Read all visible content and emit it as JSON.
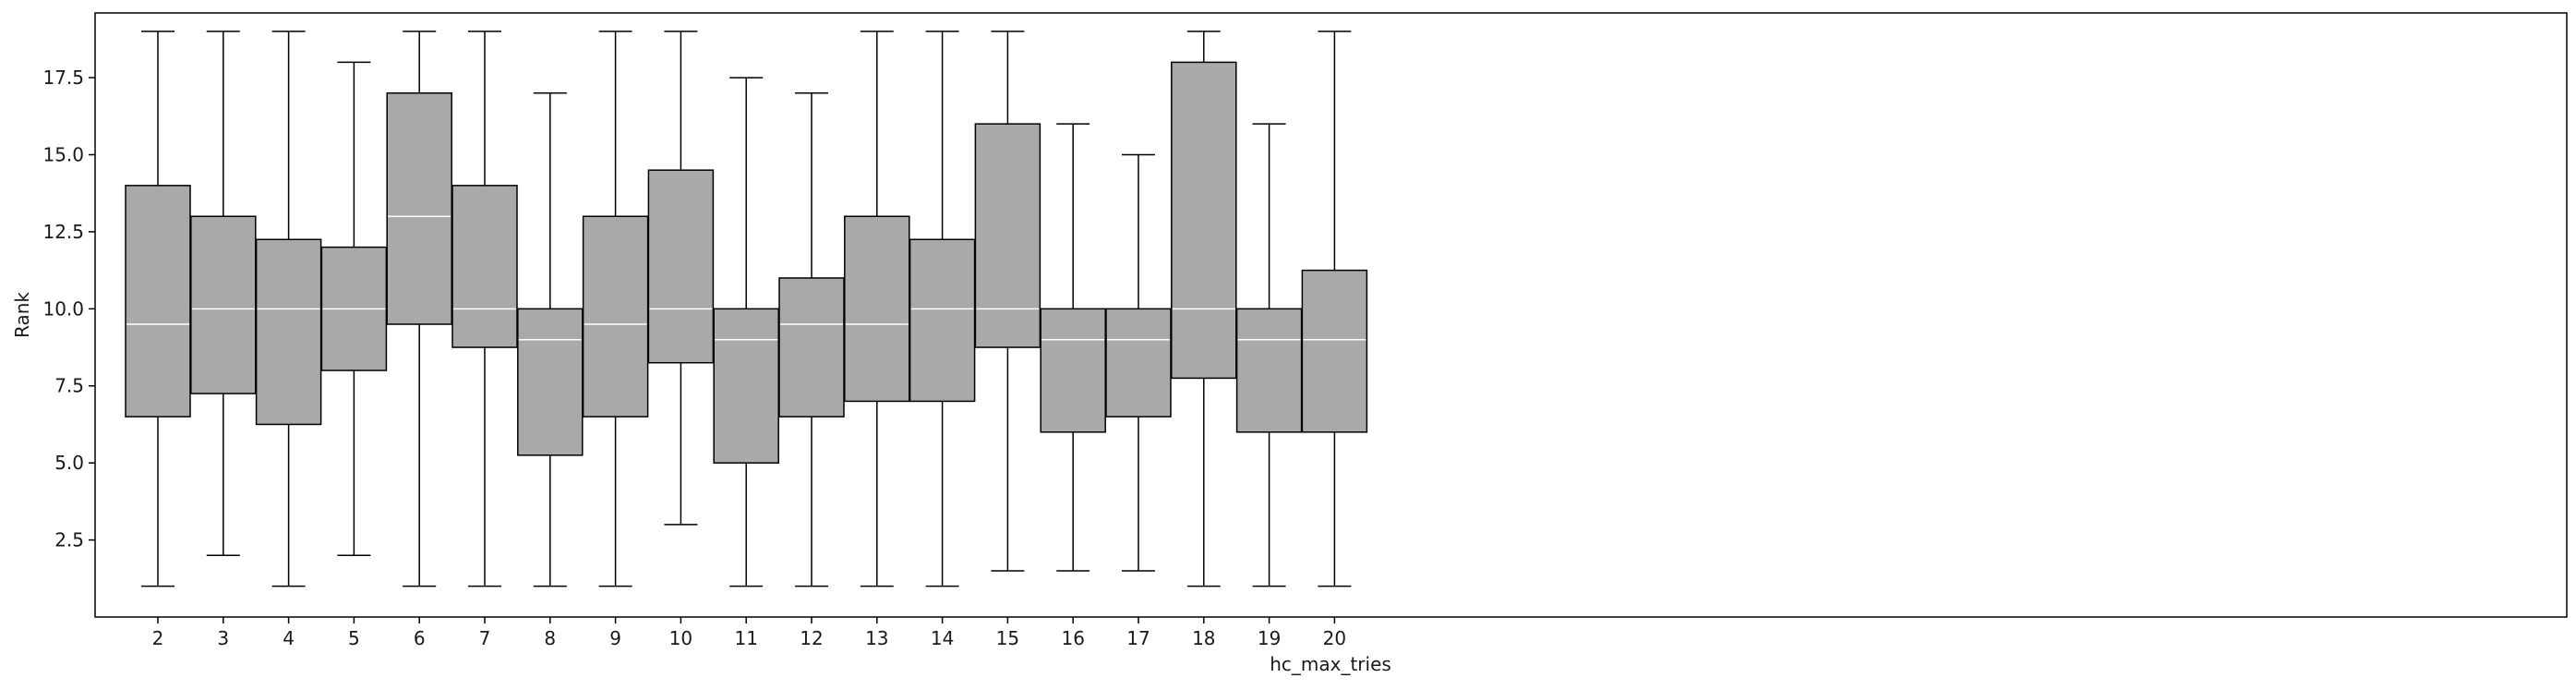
{
  "chart_data": {
    "type": "box",
    "xlabel": "hc_max_tries",
    "ylabel": "Rank",
    "ylim": [
      0,
      19.6
    ],
    "yticks": [
      2.5,
      5.0,
      7.5,
      10.0,
      12.5,
      15.0,
      17.5
    ],
    "ytick_labels": [
      "2.5",
      "5.0",
      "7.5",
      "10.0",
      "12.5",
      "15.0",
      "17.5"
    ],
    "categories": [
      "2",
      "3",
      "4",
      "5",
      "6",
      "7",
      "8",
      "9",
      "10",
      "11",
      "12",
      "13",
      "14",
      "15",
      "16",
      "17",
      "18",
      "19",
      "20"
    ],
    "boxes": [
      {
        "whislo": 1.0,
        "q1": 6.5,
        "med": 9.5,
        "q3": 14.0,
        "whishi": 19.0
      },
      {
        "whislo": 2.0,
        "q1": 7.25,
        "med": 10.0,
        "q3": 13.0,
        "whishi": 19.0
      },
      {
        "whislo": 1.0,
        "q1": 6.25,
        "med": 10.0,
        "q3": 12.25,
        "whishi": 19.0
      },
      {
        "whislo": 2.0,
        "q1": 8.0,
        "med": 10.0,
        "q3": 12.0,
        "whishi": 18.0
      },
      {
        "whislo": 1.0,
        "q1": 9.5,
        "med": 13.0,
        "q3": 17.0,
        "whishi": 19.0
      },
      {
        "whislo": 1.0,
        "q1": 8.75,
        "med": 10.0,
        "q3": 14.0,
        "whishi": 19.0
      },
      {
        "whislo": 1.0,
        "q1": 5.25,
        "med": 9.0,
        "q3": 10.0,
        "whishi": 17.0
      },
      {
        "whislo": 1.0,
        "q1": 6.5,
        "med": 9.5,
        "q3": 13.0,
        "whishi": 19.0
      },
      {
        "whislo": 3.0,
        "q1": 8.25,
        "med": 10.0,
        "q3": 14.5,
        "whishi": 19.0
      },
      {
        "whislo": 1.0,
        "q1": 5.0,
        "med": 9.0,
        "q3": 10.0,
        "whishi": 17.5
      },
      {
        "whislo": 1.0,
        "q1": 6.5,
        "med": 9.5,
        "q3": 11.0,
        "whishi": 17.0
      },
      {
        "whislo": 1.0,
        "q1": 7.0,
        "med": 9.5,
        "q3": 13.0,
        "whishi": 19.0
      },
      {
        "whislo": 1.0,
        "q1": 7.0,
        "med": 10.0,
        "q3": 12.25,
        "whishi": 19.0
      },
      {
        "whislo": 1.5,
        "q1": 8.75,
        "med": 10.0,
        "q3": 16.0,
        "whishi": 19.0
      },
      {
        "whislo": 1.5,
        "q1": 6.0,
        "med": 9.0,
        "q3": 10.0,
        "whishi": 16.0
      },
      {
        "whislo": 1.5,
        "q1": 6.5,
        "med": 9.0,
        "q3": 10.0,
        "whishi": 15.0
      },
      {
        "whislo": 1.0,
        "q1": 7.75,
        "med": 10.0,
        "q3": 18.0,
        "whishi": 19.0
      },
      {
        "whislo": 1.0,
        "q1": 6.0,
        "med": 9.0,
        "q3": 10.0,
        "whishi": 16.0
      },
      {
        "whislo": 1.0,
        "q1": 6.0,
        "med": 9.0,
        "q3": 11.25,
        "whishi": 19.0
      }
    ],
    "colors": {
      "box_fill": "#a9a9a9",
      "box_edge": "#000000",
      "median": "#ffffff",
      "whisker": "#000000"
    },
    "grid": false,
    "legend": "none"
  }
}
